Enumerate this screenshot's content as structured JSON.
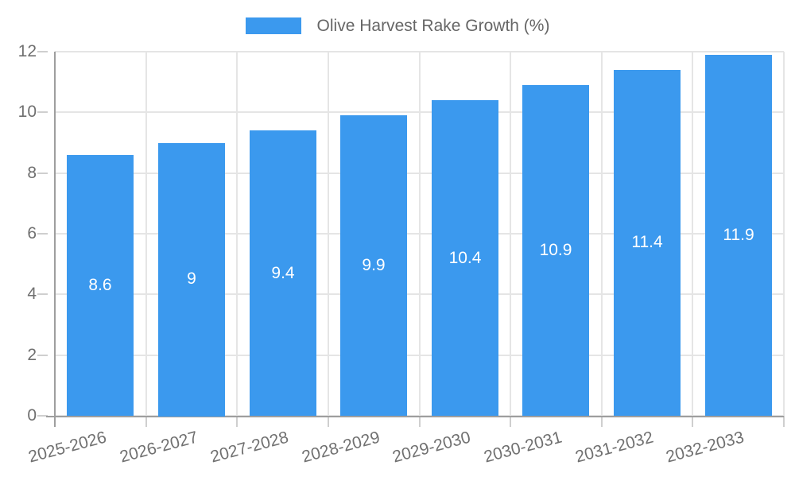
{
  "chart_data": {
    "type": "bar",
    "title": "",
    "legend_label": "Olive Harvest Rake Growth (%)",
    "legend_position": "top-center",
    "categories": [
      "2025-2026",
      "2026-2027",
      "2027-2028",
      "2028-2029",
      "2029-2030",
      "2030-2031",
      "2031-2032",
      "2032-2033"
    ],
    "series": [
      {
        "name": "Olive Harvest Rake Growth (%)",
        "values": [
          8.6,
          9,
          9.4,
          9.9,
          10.4,
          10.9,
          11.4,
          11.9
        ]
      }
    ],
    "value_labels": [
      "8.6",
      "9",
      "9.4",
      "9.9",
      "10.4",
      "10.9",
      "11.4",
      "11.9"
    ],
    "xlabel": "",
    "ylabel": "",
    "ylim": [
      0,
      12
    ],
    "yticks": [
      "0",
      "2",
      "4",
      "6",
      "8",
      "10",
      "12"
    ],
    "grid": "on",
    "x_label_rotation_deg": -15,
    "colors": {
      "bar": "#3B99EE",
      "bar_label": "#FFFFFF",
      "grid": "#E5E5E5",
      "axis": "#9E9E9E",
      "tick": "#CFCFCF",
      "tick_text": "#707070",
      "legend_text": "#666666",
      "background": "#FFFFFF"
    }
  }
}
